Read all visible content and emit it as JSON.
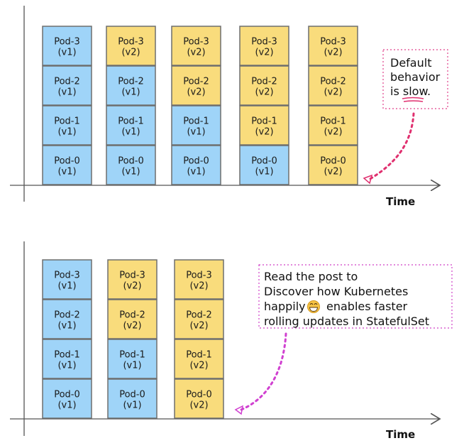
{
  "colors": {
    "v1": "#9fd4f8",
    "v2": "#f9dc7c",
    "note1": "#e0306f",
    "note2": "#d040d0"
  },
  "diagram1": {
    "axis_label": "Time",
    "columns": [
      [
        {
          "name": "Pod-3",
          "ver": "(v1)"
        },
        {
          "name": "Pod-2",
          "ver": "(v1)"
        },
        {
          "name": "Pod-1",
          "ver": "(v1)"
        },
        {
          "name": "Pod-0",
          "ver": "(v1)"
        }
      ],
      [
        {
          "name": "Pod-3",
          "ver": "(v2)"
        },
        {
          "name": "Pod-2",
          "ver": "(v1)"
        },
        {
          "name": "Pod-1",
          "ver": "(v1)"
        },
        {
          "name": "Pod-0",
          "ver": "(v1)"
        }
      ],
      [
        {
          "name": "Pod-3",
          "ver": "(v2)"
        },
        {
          "name": "Pod-2",
          "ver": "(v2)"
        },
        {
          "name": "Pod-1",
          "ver": "(v1)"
        },
        {
          "name": "Pod-0",
          "ver": "(v1)"
        }
      ],
      [
        {
          "name": "Pod-3",
          "ver": "(v2)"
        },
        {
          "name": "Pod-2",
          "ver": "(v2)"
        },
        {
          "name": "Pod-1",
          "ver": "(v2)"
        },
        {
          "name": "Pod-0",
          "ver": "(v1)"
        }
      ],
      [
        {
          "name": "Pod-3",
          "ver": "(v2)"
        },
        {
          "name": "Pod-2",
          "ver": "(v2)"
        },
        {
          "name": "Pod-1",
          "ver": "(v2)"
        },
        {
          "name": "Pod-0",
          "ver": "(v2)"
        }
      ]
    ],
    "note_lines": [
      "Default",
      "behavior",
      "is slow."
    ]
  },
  "diagram2": {
    "axis_label": "Time",
    "columns": [
      [
        {
          "name": "Pod-3",
          "ver": "(v1)"
        },
        {
          "name": "Pod-2",
          "ver": "(v1)"
        },
        {
          "name": "Pod-1",
          "ver": "(v1)"
        },
        {
          "name": "Pod-0",
          "ver": "(v1)"
        }
      ],
      [
        {
          "name": "Pod-3",
          "ver": "(v2)"
        },
        {
          "name": "Pod-2",
          "ver": "(v2)"
        },
        {
          "name": "Pod-1",
          "ver": "(v1)"
        },
        {
          "name": "Pod-0",
          "ver": "(v1)"
        }
      ],
      [
        {
          "name": "Pod-3",
          "ver": "(v2)"
        },
        {
          "name": "Pod-2",
          "ver": "(v2)"
        },
        {
          "name": "Pod-1",
          "ver": "(v2)"
        },
        {
          "name": "Pod-0",
          "ver": "(v2)"
        }
      ]
    ],
    "note_lines": [
      "Read the post to",
      "Discover how Kubernetes",
      "happily",
      "enables faster",
      "rolling updates in StatefulSet"
    ],
    "emoji": "😁"
  }
}
